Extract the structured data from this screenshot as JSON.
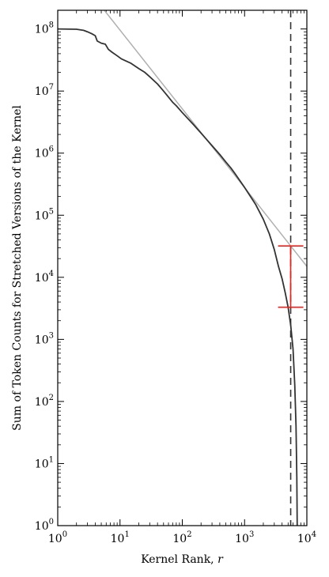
{
  "chart_data": {
    "type": "line",
    "xscale": "log",
    "yscale": "log",
    "xlim": [
      1,
      10000
    ],
    "ylim": [
      1,
      200000000
    ],
    "xlabel": "Kernel Rank, r",
    "ylabel": "Sum of Token Counts for Stretched Versions of the Kernel",
    "x_ticks": [
      {
        "value": 1,
        "base": "10",
        "exp": "0"
      },
      {
        "value": 10,
        "base": "10",
        "exp": "1"
      },
      {
        "value": 100,
        "base": "10",
        "exp": "2"
      },
      {
        "value": 1000,
        "base": "10",
        "exp": "3"
      },
      {
        "value": 10000,
        "base": "10",
        "exp": "4"
      }
    ],
    "y_ticks": [
      {
        "value": 1,
        "base": "10",
        "exp": "0"
      },
      {
        "value": 10,
        "base": "10",
        "exp": "1"
      },
      {
        "value": 100,
        "base": "10",
        "exp": "2"
      },
      {
        "value": 1000,
        "base": "10",
        "exp": "3"
      },
      {
        "value": 10000,
        "base": "10",
        "exp": "4"
      },
      {
        "value": 100000,
        "base": "10",
        "exp": "5"
      },
      {
        "value": 1000000,
        "base": "10",
        "exp": "6"
      },
      {
        "value": 10000000,
        "base": "10",
        "exp": "7"
      },
      {
        "value": 100000000,
        "base": "10",
        "exp": "8"
      }
    ],
    "series": [
      {
        "color": "#333333",
        "style": "solid",
        "points": [
          [
            1,
            100000000
          ],
          [
            2,
            99000000
          ],
          [
            2.6,
            95000000
          ],
          [
            3,
            90000000
          ],
          [
            3.5,
            84000000
          ],
          [
            4,
            78000000
          ],
          [
            4.3,
            64000000
          ],
          [
            5,
            59000000
          ],
          [
            5.8,
            57000000
          ],
          [
            6.5,
            47000000
          ],
          [
            7.5,
            42000000
          ],
          [
            9,
            37000000
          ],
          [
            10.5,
            33000000
          ],
          [
            12,
            31000000
          ],
          [
            15,
            28000000
          ],
          [
            20,
            23000000
          ],
          [
            25,
            20000000
          ],
          [
            30,
            17000000
          ],
          [
            40,
            13000000
          ],
          [
            50,
            10000000
          ],
          [
            60,
            8000000
          ],
          [
            70,
            6600000
          ],
          [
            80,
            5800000
          ],
          [
            100,
            4500000
          ],
          [
            150,
            2900000
          ],
          [
            200,
            2100000
          ],
          [
            300,
            1320000
          ],
          [
            400,
            950000
          ],
          [
            500,
            720000
          ],
          [
            600,
            580000
          ],
          [
            700,
            470000
          ],
          [
            1000,
            280000
          ],
          [
            1500,
            150000
          ],
          [
            2000,
            86000
          ],
          [
            2500,
            50000
          ],
          [
            3000,
            28000
          ],
          [
            3500,
            15000
          ],
          [
            4000,
            9500
          ],
          [
            4500,
            5600
          ],
          [
            5000,
            3300
          ],
          [
            5500,
            1700
          ],
          [
            6000,
            700
          ],
          [
            6400,
            180
          ],
          [
            6700,
            40
          ],
          [
            6900,
            6
          ],
          [
            7000,
            1
          ]
        ]
      },
      {
        "color": "#b0b0b0",
        "style": "solid",
        "points": [
          [
            5.6,
            200000000
          ],
          [
            10000,
            15000
          ]
        ]
      }
    ],
    "vline": {
      "x": 5500,
      "color": "#333333",
      "style": "dashed"
    },
    "error_bar": {
      "x": 5500,
      "y_low": 3300,
      "y_high": 32000,
      "color": "#e8231c"
    }
  }
}
